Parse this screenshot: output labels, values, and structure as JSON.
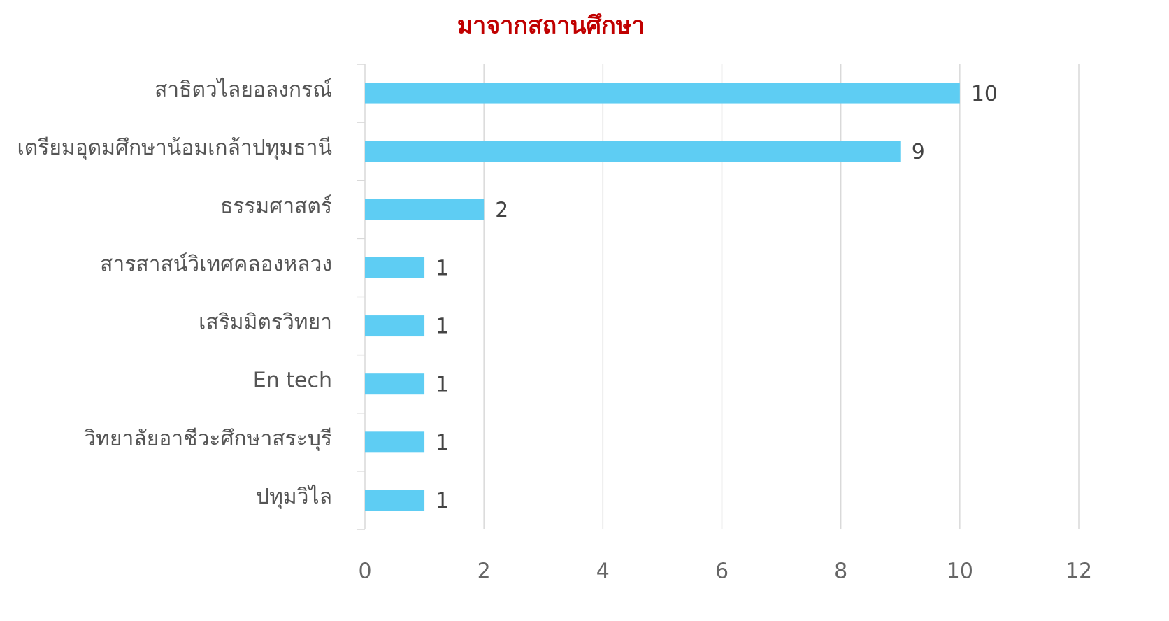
{
  "chart_data": {
    "type": "bar",
    "orientation": "horizontal",
    "title": "มาจากสถานศึกษา",
    "categories": [
      "สาธิตวไลยอลงกรณ์",
      "เตรียมอุดมศึกษาน้อมเกล้าปทุมธานี",
      "ธรรมศาสตร์",
      "สารสาสน์วิเทศคลองหลวง",
      "เสริมมิตรวิทยา",
      "En tech",
      "วิทยาลัยอาชีวะศึกษาสระบุรี",
      "ปทุมวิไล"
    ],
    "values": [
      10,
      9,
      2,
      1,
      1,
      1,
      1,
      1
    ],
    "color": "#5ecdf3",
    "xlim": [
      0,
      12
    ],
    "xticks": [
      0,
      2,
      4,
      6,
      8,
      10,
      12
    ],
    "grid": true
  }
}
